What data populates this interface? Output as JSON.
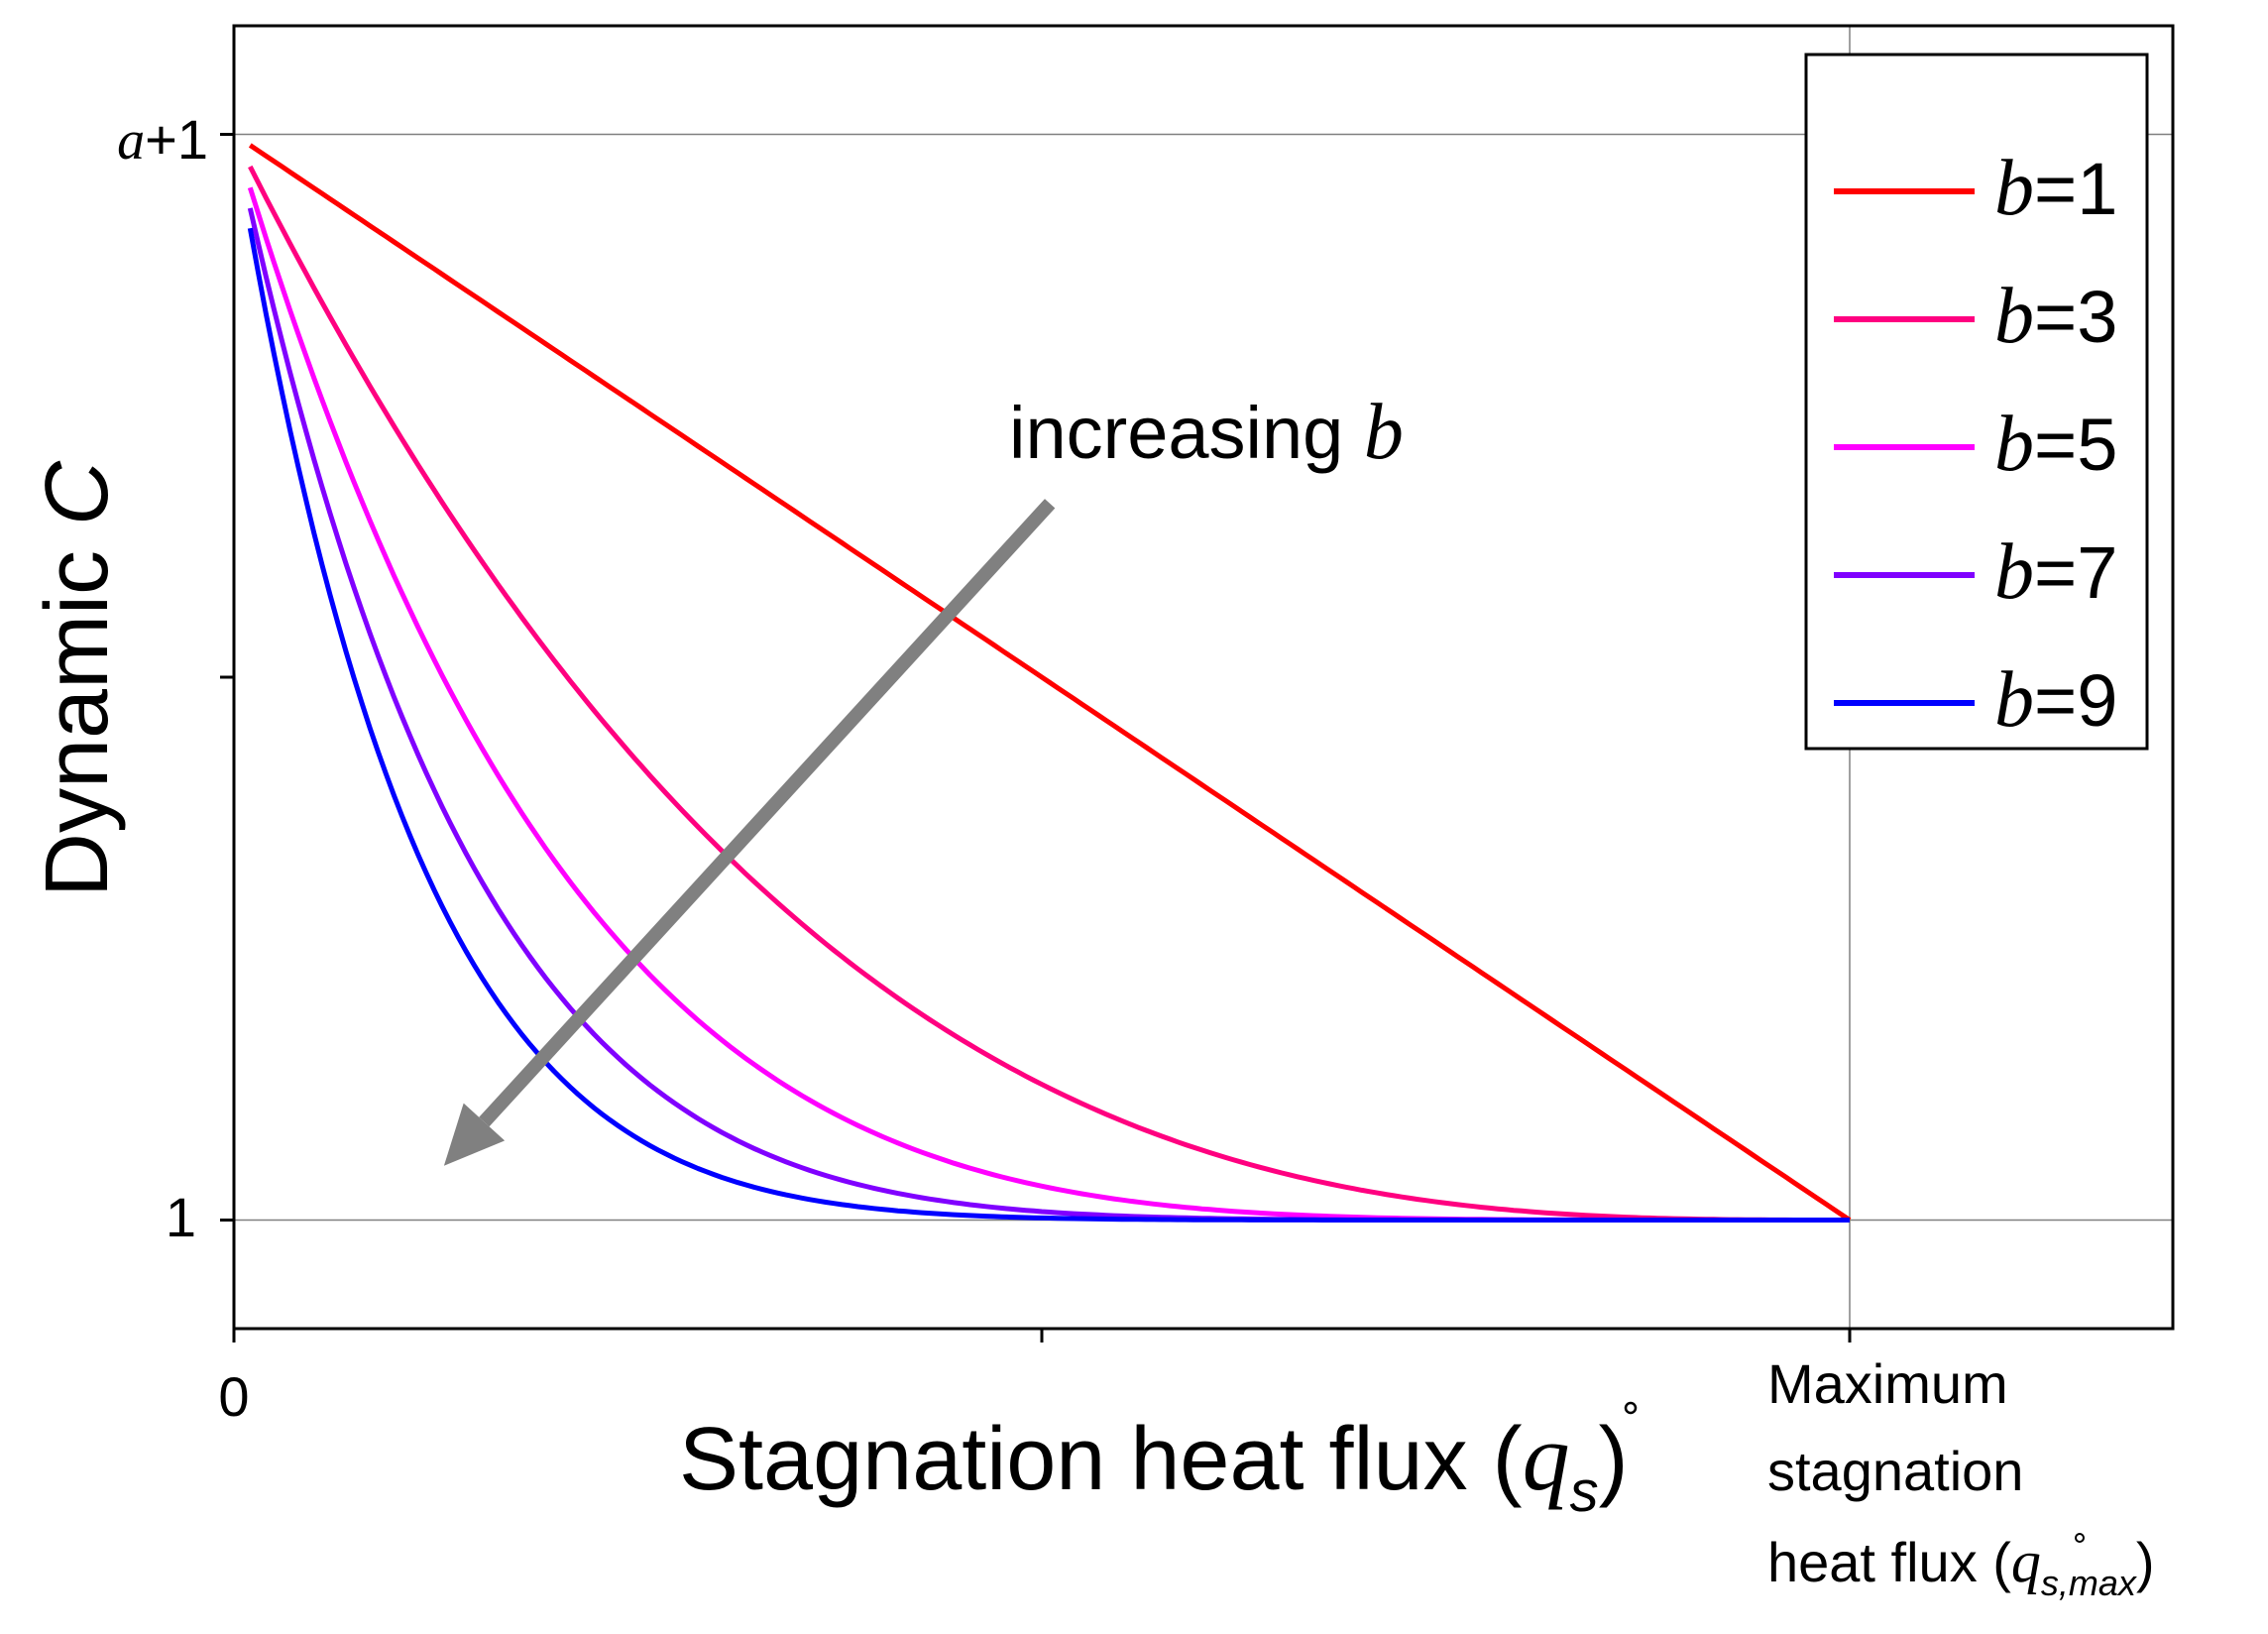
{
  "chart_data": {
    "type": "line",
    "title": "",
    "xlabel": {
      "text": "Stagnation heat flux (",
      "symbol": "q",
      "subscript": "s",
      "close": ")"
    },
    "ylabel": {
      "text": "Dynamic ",
      "symbol": "C"
    },
    "x_ticks": [
      {
        "value": 0,
        "label": "0"
      },
      {
        "value": 0.5,
        "label": ""
      },
      {
        "value": 1,
        "label_lines": [
          "Maximum",
          "stagnation",
          "heat flux ("
        ],
        "symbol": "q",
        "subscript": "s,max",
        "close": ")"
      }
    ],
    "y_ticks": [
      {
        "value": 1,
        "label": "1"
      },
      {
        "value": 1.5,
        "label": ""
      },
      {
        "value": 2,
        "label_italic": "a",
        "label": "+1"
      }
    ],
    "xlim": [
      0,
      1.2
    ],
    "ylim": [
      0.9,
      2.1
    ],
    "grid": {
      "horizontal_at": [
        1,
        2
      ],
      "vertical_at": [
        1
      ]
    },
    "series": [
      {
        "name": "b=1",
        "b": 1,
        "color": "#ff0000"
      },
      {
        "name": "b=3",
        "b": 3,
        "color": "#ff0080"
      },
      {
        "name": "b=5",
        "b": 5,
        "color": "#ff00ff"
      },
      {
        "name": "b=7",
        "b": 7,
        "color": "#8000ff"
      },
      {
        "name": "b=9",
        "b": 9,
        "color": "#0000ff"
      }
    ],
    "curve_model": "C = 1 + (1 - x)^b, x from 0 to 1 (normalized heat flux)",
    "legend": {
      "position": "top-right",
      "entries": [
        {
          "italic": "b",
          "text": "=1",
          "color": "#ff0000"
        },
        {
          "italic": "b",
          "text": "=3",
          "color": "#ff0080"
        },
        {
          "italic": "b",
          "text": "=5",
          "color": "#ff00ff"
        },
        {
          "italic": "b",
          "text": "=7",
          "color": "#8000ff"
        },
        {
          "italic": "b",
          "text": "=9",
          "color": "#0000ff"
        }
      ]
    },
    "annotation": {
      "text": "increasing ",
      "italic": "b",
      "arrow_color": "#808080",
      "from": {
        "x": 0.505,
        "y": 1.66
      },
      "to": {
        "x": 0.13,
        "y": 1.05
      }
    }
  }
}
